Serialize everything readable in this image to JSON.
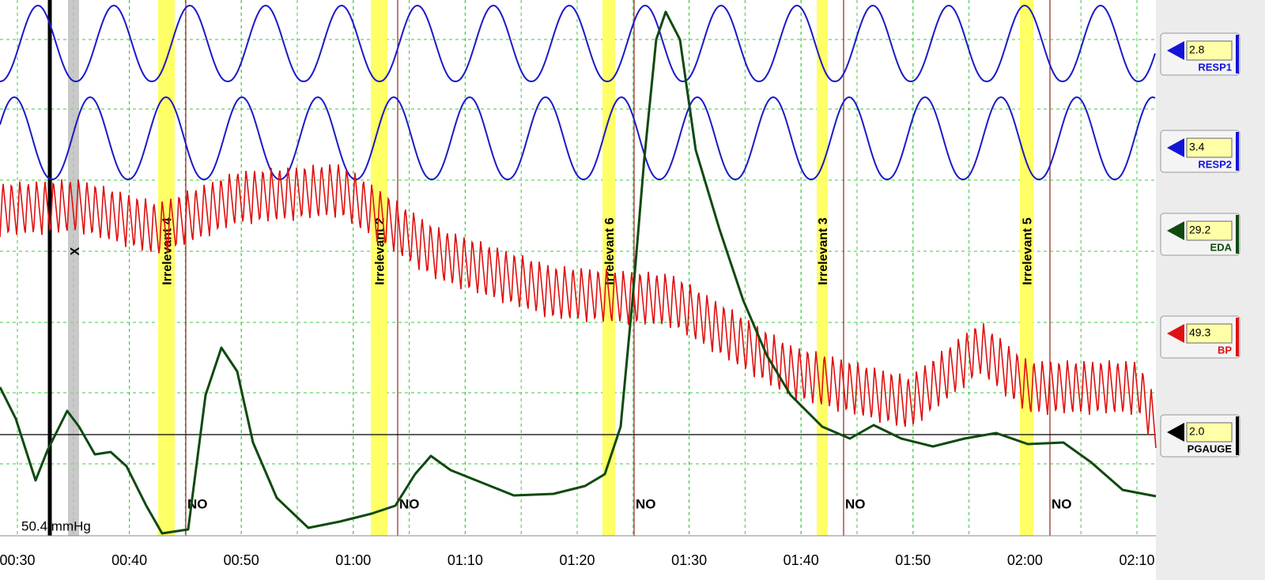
{
  "scale_label": "50.4 mmHg",
  "marker_label": "X",
  "time_labels": [
    "00:30",
    "00:40",
    "00:50",
    "01:00",
    "01:10",
    "01:20",
    "01:30",
    "01:40",
    "01:50",
    "02:00",
    "02:10"
  ],
  "events": [
    {
      "label": "Irrelevant 4",
      "answer": "NO"
    },
    {
      "label": "Irrelevant 2",
      "answer": "NO"
    },
    {
      "label": "Irrelevant 6",
      "answer": "NO"
    },
    {
      "label": "Irrelevant 3",
      "answer": "NO"
    },
    {
      "label": "Irrelevant 5",
      "answer": "NO"
    }
  ],
  "channels": [
    {
      "name": "RESP1",
      "value": "2.8"
    },
    {
      "name": "RESP2",
      "value": "3.4"
    },
    {
      "name": "EDA",
      "value": "29.2"
    },
    {
      "name": "BP",
      "value": "49.3"
    },
    {
      "name": "PGAUGE",
      "value": "2.0"
    }
  ]
}
